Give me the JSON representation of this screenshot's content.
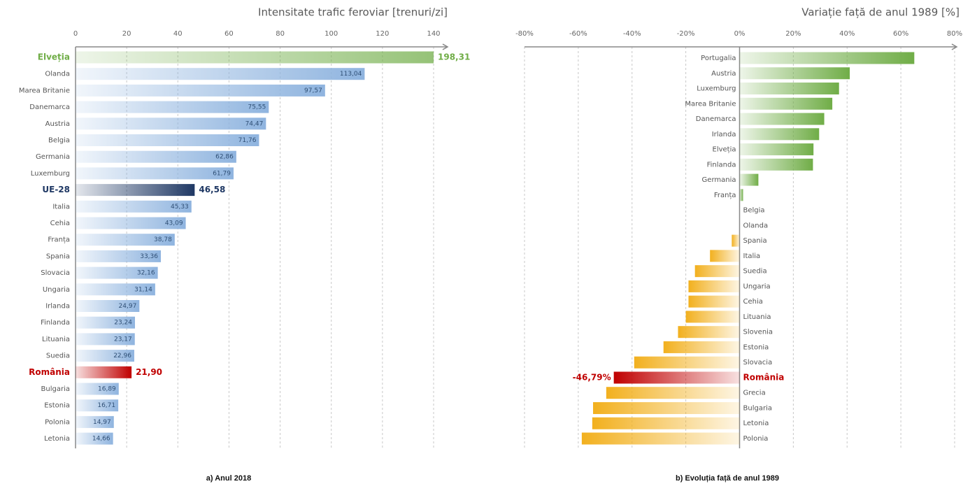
{
  "chart_data": [
    {
      "type": "bar",
      "horizontal": true,
      "title": "Intensitate trafic feroviar [trenuri/zi]",
      "caption": "a) Anul 2018",
      "categories": [
        "Elveția",
        "Olanda",
        "Marea Britanie",
        "Danemarca",
        "Austria",
        "Belgia",
        "Germania",
        "Luxemburg",
        "UE-28",
        "Italia",
        "Cehia",
        "Franța",
        "Spania",
        "Slovacia",
        "Ungaria",
        "Irlanda",
        "Finlanda",
        "Lituania",
        "Suedia",
        "România",
        "Bulgaria",
        "Estonia",
        "Polonia",
        "Letonia"
      ],
      "values": [
        198.31,
        113.04,
        97.57,
        75.55,
        74.47,
        71.76,
        62.86,
        61.79,
        46.58,
        45.33,
        43.09,
        38.78,
        33.36,
        32.16,
        31.14,
        24.97,
        23.24,
        23.17,
        22.96,
        21.9,
        16.89,
        16.71,
        14.97,
        14.66
      ],
      "value_labels": [
        "198,31",
        "113,04",
        "97,57",
        "75,55",
        "74,47",
        "71,76",
        "62,86",
        "61,79",
        "46,58",
        "45,33",
        "43,09",
        "38,78",
        "33,36",
        "32,16",
        "31,14",
        "24,97",
        "23,24",
        "23,17",
        "22,96",
        "21,90",
        "16,89",
        "16,71",
        "14,97",
        "14,66"
      ],
      "color": "#8fb4df",
      "colors": [
        "#70ad47",
        "#8fb4df",
        "#8fb4df",
        "#8fb4df",
        "#8fb4df",
        "#8fb4df",
        "#8fb4df",
        "#8fb4df",
        "#1f3864",
        "#8fb4df",
        "#8fb4df",
        "#8fb4df",
        "#8fb4df",
        "#8fb4df",
        "#8fb4df",
        "#8fb4df",
        "#8fb4df",
        "#8fb4df",
        "#8fb4df",
        "#c00000",
        "#8fb4df",
        "#8fb4df",
        "#8fb4df",
        "#8fb4df"
      ],
      "xlim": [
        0,
        140
      ],
      "xticks": [
        0,
        20,
        40,
        60,
        80,
        100,
        120,
        140
      ],
      "grid": true
    },
    {
      "type": "bar",
      "horizontal": true,
      "title": "Variație față de anul 1989 [%]",
      "caption": "b) Evoluția față de anul 1989",
      "categories": [
        "Portugalia",
        "Austria",
        "Luxemburg",
        "Marea Britanie",
        "Danemarca",
        "Irlanda",
        "Elveția",
        "Finlanda",
        "Germania",
        "Franța",
        "Belgia",
        "Olanda",
        "Spania",
        "Italia",
        "Suedia",
        "Ungaria",
        "Cehia",
        "Lituania",
        "Slovenia",
        "Estonia",
        "Slovacia",
        "România",
        "Grecia",
        "Bulgaria",
        "Letonia",
        "Polonia"
      ],
      "values": [
        65,
        41,
        37,
        34.5,
        31.5,
        29.6,
        27.5,
        27.3,
        7,
        1.3,
        0,
        0,
        -2.9,
        -11,
        -16.6,
        -19,
        -19,
        -20,
        -22.9,
        -28.3,
        -39.2,
        -46.79,
        -49.6,
        -54.5,
        -54.8,
        -58.7
      ],
      "value_labels": [
        null,
        null,
        null,
        null,
        null,
        null,
        null,
        null,
        null,
        null,
        null,
        null,
        null,
        null,
        null,
        null,
        null,
        null,
        null,
        null,
        null,
        "-46,79%",
        null,
        null,
        null,
        null
      ],
      "color": "#f2b01e",
      "colors": [
        "#70ad47",
        "#70ad47",
        "#70ad47",
        "#70ad47",
        "#70ad47",
        "#70ad47",
        "#70ad47",
        "#70ad47",
        "#70ad47",
        "#70ad47",
        "#70ad47",
        "#70ad47",
        "#f2b01e",
        "#f2b01e",
        "#f2b01e",
        "#f2b01e",
        "#f2b01e",
        "#f2b01e",
        "#f2b01e",
        "#f2b01e",
        "#f2b01e",
        "#c00000",
        "#f2b01e",
        "#f2b01e",
        "#f2b01e",
        "#f2b01e"
      ],
      "xlim": [
        -80,
        80
      ],
      "xticks": [
        {
          "value": -80,
          "label": "-80%"
        },
        {
          "value": -60,
          "label": "-60%"
        },
        {
          "value": -40,
          "label": "-40%"
        },
        {
          "value": -20,
          "label": "-20%"
        },
        {
          "value": 0,
          "label": "0%"
        },
        {
          "value": 20,
          "label": "20%"
        },
        {
          "value": 40,
          "label": "40%"
        },
        {
          "value": 60,
          "label": "60%"
        },
        {
          "value": 80,
          "label": "80%"
        }
      ],
      "grid": true
    }
  ]
}
